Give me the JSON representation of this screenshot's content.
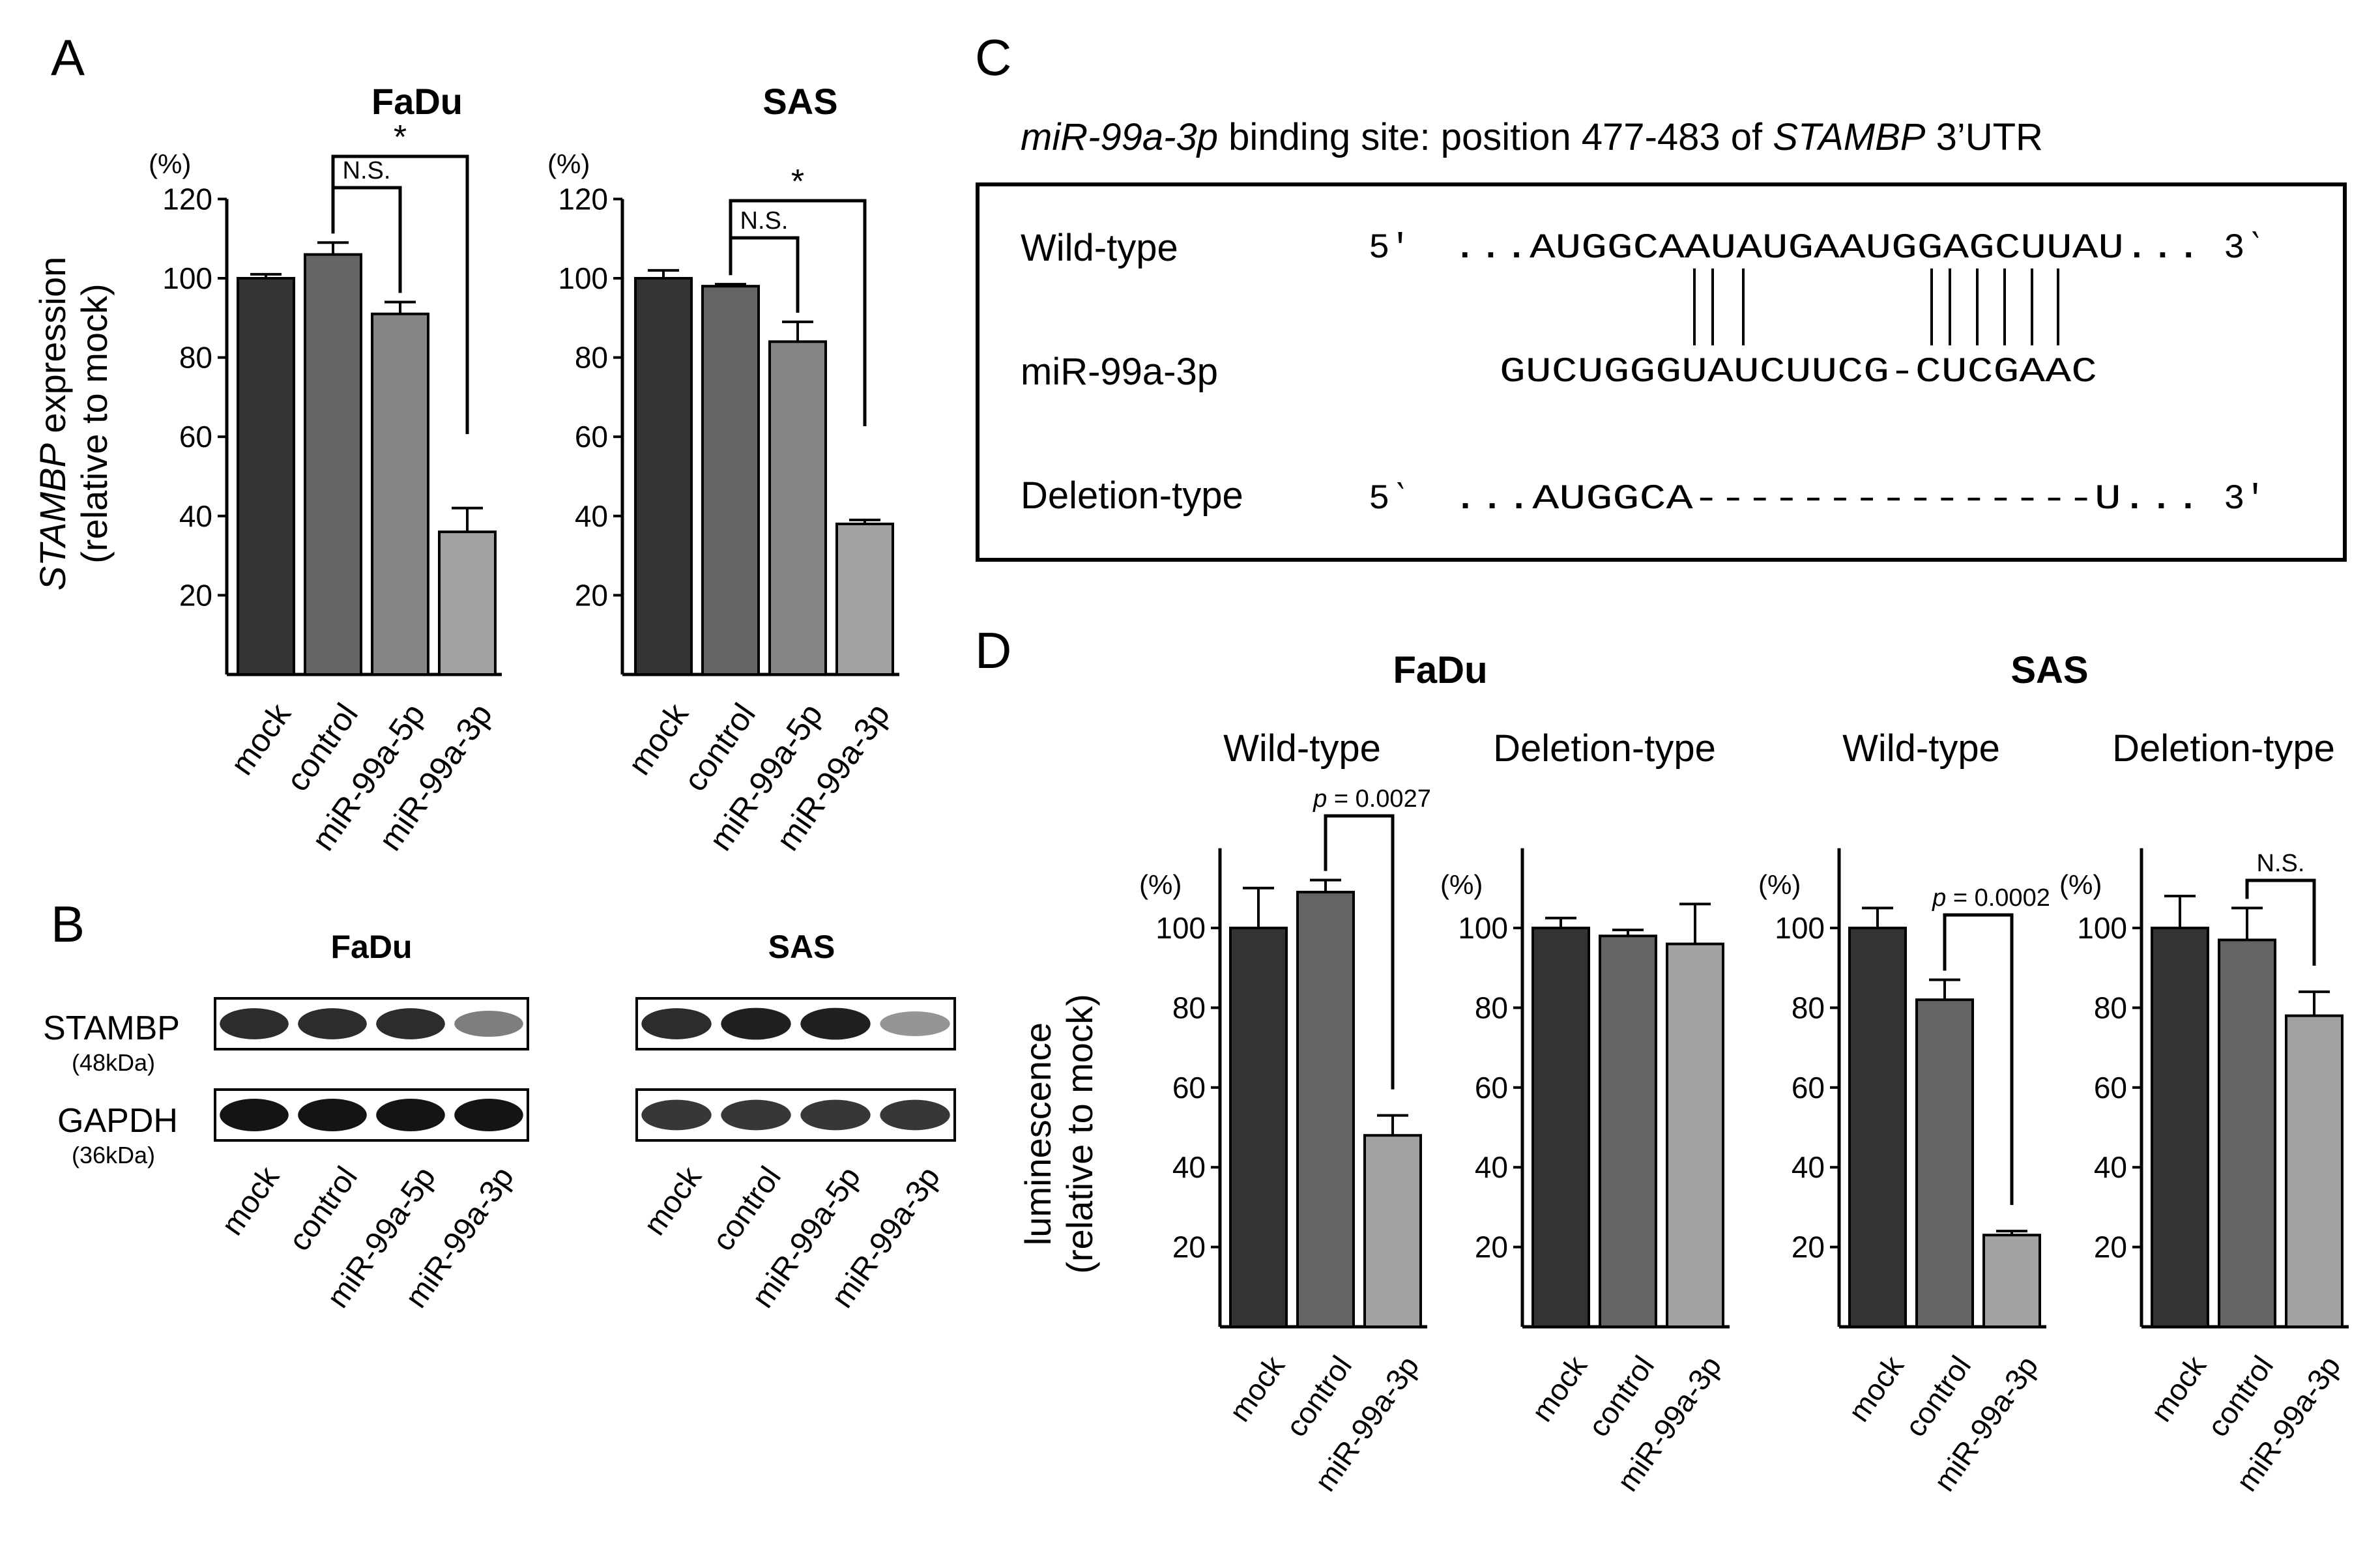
{
  "panels": {
    "A": {
      "letter": "A",
      "ylabel_italic": "STAMBP",
      "ylabel_rest": " expression",
      "ylabel2": "(relative to mock)",
      "unit": "(%)"
    },
    "B": {
      "letter": "B",
      "bands": [
        {
          "name": "STAMBP",
          "size": "(48kDa)"
        },
        {
          "name": "GAPDH",
          "size": "(36kDa)"
        }
      ],
      "lanes": [
        "mock",
        "control",
        "miR-99a-5p",
        "miR-99a-3p"
      ],
      "cells": [
        "FaDu",
        "SAS"
      ],
      "band_intensity": {
        "FaDu": {
          "STAMBP": [
            0.9,
            0.9,
            0.9,
            0.55
          ],
          "GAPDH": [
            1,
            1,
            1,
            1
          ]
        },
        "SAS": {
          "STAMBP": [
            0.9,
            0.95,
            0.95,
            0.45
          ],
          "GAPDH": [
            0.85,
            0.85,
            0.85,
            0.85
          ]
        }
      }
    },
    "C": {
      "letter": "C",
      "title_italic1": "miR-99a-3p",
      "title_mid": " binding site: position 477-483 of ",
      "title_italic2": "STAMBP",
      "title_end": " 3’UTR",
      "rows": [
        {
          "label": "Wild-type",
          "end5": "5′",
          "seq": "...AUGGCAAUAUGAAUGGAGCUUAU...",
          "end3": "3‵"
        },
        {
          "label": "miR-99a-3p",
          "seq": "GUCUGGGUAUCUUCG-CUCGAAC"
        },
        {
          "label": "Deletion-type",
          "end5": "5‵",
          "seq": "...AUGGCA---------------U...",
          "end3": "3′"
        }
      ]
    },
    "D": {
      "letter": "D",
      "ylabel": "luminescence",
      "ylabel2": "(relative to mock)",
      "unit": "(%)",
      "cell_titles": [
        "FaDu",
        "SAS"
      ],
      "subtitles": [
        "Wild-type",
        "Deletion-type",
        "Wild-type",
        "Deletion-type"
      ]
    }
  },
  "colors": {
    "bar1": "#333333",
    "bar2": "#646464",
    "bar3": "#858585",
    "bar4": "#a2a2a2"
  },
  "chart_data": [
    {
      "id": "A-FaDu",
      "type": "bar",
      "title": "FaDu",
      "ylabel": "STAMBP expression (relative to mock)",
      "categories": [
        "mock",
        "control",
        "miR-99a-5p",
        "miR-99a-3p"
      ],
      "values": [
        100,
        106,
        91,
        36
      ],
      "errors": [
        1,
        3,
        3,
        6
      ],
      "ylim": [
        0,
        120
      ],
      "yticks": [
        20,
        40,
        60,
        80,
        100,
        120
      ],
      "annotations": [
        {
          "from": 1,
          "to": 2,
          "text": "N.S."
        },
        {
          "from": 1,
          "to": 3,
          "text": "*"
        }
      ]
    },
    {
      "id": "A-SAS",
      "type": "bar",
      "title": "SAS",
      "ylabel": "STAMBP expression (relative to mock)",
      "categories": [
        "mock",
        "control",
        "miR-99a-5p",
        "miR-99a-3p"
      ],
      "values": [
        100,
        98,
        84,
        38
      ],
      "errors": [
        2,
        0.5,
        5,
        1
      ],
      "ylim": [
        0,
        120
      ],
      "yticks": [
        20,
        40,
        60,
        80,
        100,
        120
      ],
      "annotations": [
        {
          "from": 1,
          "to": 2,
          "text": "N.S."
        },
        {
          "from": 1,
          "to": 3,
          "text": "*"
        }
      ]
    },
    {
      "id": "D-FaDu-WT",
      "type": "bar",
      "title": "Wild-type",
      "ylabel": "luminescence (relative to mock)",
      "categories": [
        "mock",
        "control",
        "miR-99a-3p"
      ],
      "values": [
        100,
        109,
        48
      ],
      "errors": [
        10,
        3,
        5
      ],
      "ylim": [
        0,
        120
      ],
      "yticks": [
        20,
        40,
        60,
        80,
        100
      ],
      "annotations": [
        {
          "from": 1,
          "to": 2,
          "text": "p = 0.0027"
        }
      ]
    },
    {
      "id": "D-FaDu-Del",
      "type": "bar",
      "title": "Deletion-type",
      "ylabel": "luminescence (relative to mock)",
      "categories": [
        "mock",
        "control",
        "miR-99a-3p"
      ],
      "values": [
        100,
        98,
        96
      ],
      "errors": [
        2.5,
        1.5,
        10
      ],
      "ylim": [
        0,
        120
      ],
      "yticks": [
        20,
        40,
        60,
        80,
        100
      ],
      "annotations": []
    },
    {
      "id": "D-SAS-WT",
      "type": "bar",
      "title": "Wild-type",
      "ylabel": "luminescence (relative to mock)",
      "categories": [
        "mock",
        "control",
        "miR-99a-3p"
      ],
      "values": [
        100,
        82,
        23
      ],
      "errors": [
        5,
        5,
        1
      ],
      "ylim": [
        0,
        120
      ],
      "yticks": [
        20,
        40,
        60,
        80,
        100
      ],
      "annotations": [
        {
          "from": 1,
          "to": 2,
          "text": "p = 0.0002"
        }
      ]
    },
    {
      "id": "D-SAS-Del",
      "type": "bar",
      "title": "Deletion-type",
      "ylabel": "luminescence (relative to mock)",
      "categories": [
        "mock",
        "control",
        "miR-99a-3p"
      ],
      "values": [
        100,
        97,
        78
      ],
      "errors": [
        8,
        8,
        6
      ],
      "ylim": [
        0,
        120
      ],
      "yticks": [
        20,
        40,
        60,
        80,
        100
      ],
      "annotations": [
        {
          "from": 1,
          "to": 2,
          "text": "N.S."
        }
      ]
    }
  ]
}
